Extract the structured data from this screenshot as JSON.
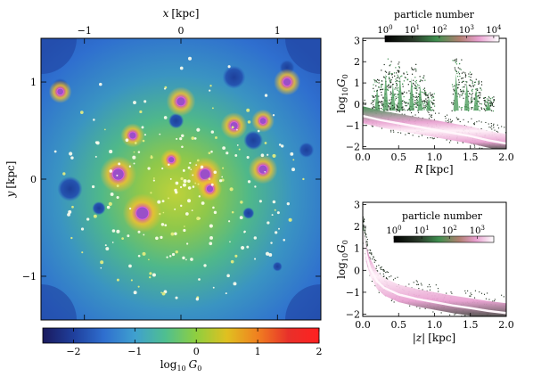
{
  "chart_data": [
    {
      "type": "heatmap",
      "title": "",
      "xlabel_var": "x",
      "xlabel_unit": "[kpc]",
      "ylabel_var": "y",
      "ylabel_unit": "[kpc]",
      "x_ticks": [
        "−1",
        "0",
        "1"
      ],
      "y_ticks": [
        "1",
        "0",
        "−1"
      ],
      "x_tick_values": [
        -1,
        0,
        1
      ],
      "y_tick_values": [
        1,
        0,
        -1
      ],
      "xlim": [
        -1.45,
        1.45
      ],
      "ylim": [
        -1.45,
        1.45
      ],
      "colorbar": {
        "label_prefix": "log",
        "label_sub": "10",
        "label_var": "G",
        "label_var_sub": "0",
        "range": [
          -2.5,
          2
        ],
        "ticks": [
          "−2",
          "−1",
          "0",
          "1",
          "2"
        ],
        "tick_values": [
          -2,
          -1,
          0,
          1,
          2
        ],
        "colormap": [
          "#1a1a5e",
          "#1f3f9c",
          "#2f6fcf",
          "#3fa0cf",
          "#4fbf8f",
          "#8fcf3f",
          "#e0c020",
          "#f08020",
          "#e8302a",
          "#ff2020"
        ]
      },
      "dim_regions": [
        {
          "x": -1.25,
          "y": 0.95,
          "r": 0.09
        },
        {
          "x": -1.15,
          "y": -0.1,
          "r": 0.13
        },
        {
          "x": 0.55,
          "y": 1.05,
          "r": 0.12
        },
        {
          "x": 1.1,
          "y": 1.15,
          "r": 0.08
        },
        {
          "x": -0.05,
          "y": 0.6,
          "r": 0.08
        },
        {
          "x": 0.75,
          "y": 0.4,
          "r": 0.1
        },
        {
          "x": 1.3,
          "y": 0.3,
          "r": 0.08
        },
        {
          "x": 0.7,
          "y": -0.35,
          "r": 0.06
        },
        {
          "x": -0.85,
          "y": -0.3,
          "r": 0.07
        },
        {
          "x": 1.0,
          "y": -0.9,
          "r": 0.05
        }
      ],
      "bright_sources": [
        {
          "x": -0.4,
          "y": -0.35,
          "size": 1.0
        },
        {
          "x": -0.65,
          "y": 0.05,
          "size": 0.9
        },
        {
          "x": 0.25,
          "y": 0.05,
          "size": 0.8
        },
        {
          "x": 0.0,
          "y": 0.8,
          "size": 0.6
        },
        {
          "x": 0.85,
          "y": 0.1,
          "size": 0.6
        },
        {
          "x": 0.55,
          "y": 0.55,
          "size": 0.5
        },
        {
          "x": 1.1,
          "y": 1.0,
          "size": 0.5
        },
        {
          "x": -0.5,
          "y": 0.45,
          "size": 0.4
        },
        {
          "x": 0.3,
          "y": -0.1,
          "size": 0.4
        },
        {
          "x": -1.25,
          "y": 0.9,
          "size": 0.35
        },
        {
          "x": 0.85,
          "y": 0.6,
          "size": 0.35
        },
        {
          "x": -0.1,
          "y": 0.2,
          "size": 0.3
        }
      ]
    },
    {
      "type": "heatmap",
      "title_colorbar": "particle number",
      "xlabel_var": "R",
      "xlabel_unit": "[kpc]",
      "ylabel_prefix": "log",
      "ylabel_sub": "10",
      "ylabel_var": "G",
      "ylabel_var_sub": "0",
      "xlim": [
        0,
        2
      ],
      "ylim": [
        -2.1,
        3.1
      ],
      "x_ticks": [
        "0.0",
        "0.5",
        "1.0",
        "1.5",
        "2.0"
      ],
      "x_tick_values": [
        0,
        0.5,
        1,
        1.5,
        2
      ],
      "y_ticks": [
        "−2",
        "−1",
        "0",
        "1",
        "2",
        "3"
      ],
      "y_tick_values": [
        -2,
        -1,
        0,
        1,
        2,
        3
      ],
      "colorbar_tick_exponents": [
        "0",
        "1",
        "2",
        "3",
        "4"
      ],
      "colorbar_range_log": [
        0,
        4.2
      ],
      "ridge": {
        "x": [
          0,
          0.25,
          0.5,
          0.75,
          1.0,
          1.25,
          1.5,
          1.75,
          2.0
        ],
        "y": [
          -0.55,
          -0.75,
          -0.9,
          -1.05,
          -1.2,
          -1.35,
          -1.5,
          -1.7,
          -1.85
        ]
      },
      "spikes": [
        {
          "x": 0.2,
          "top": 1.2
        },
        {
          "x": 0.32,
          "top": 2.2
        },
        {
          "x": 0.42,
          "top": 1.5
        },
        {
          "x": 0.52,
          "top": 2.0
        },
        {
          "x": 0.68,
          "top": 1.9
        },
        {
          "x": 0.8,
          "top": 1.4
        },
        {
          "x": 0.92,
          "top": 0.6
        },
        {
          "x": 1.3,
          "top": 2.2
        },
        {
          "x": 1.45,
          "top": 1.6
        },
        {
          "x": 1.58,
          "top": 1.2
        },
        {
          "x": 1.75,
          "top": 0.4
        }
      ]
    },
    {
      "type": "heatmap",
      "title_colorbar": "particle number",
      "xlabel_var": "|z|",
      "xlabel_unit": "[kpc]",
      "ylabel_prefix": "log",
      "ylabel_sub": "10",
      "ylabel_var": "G",
      "ylabel_var_sub": "0",
      "xlim": [
        0,
        2
      ],
      "ylim": [
        -2.1,
        3.1
      ],
      "x_ticks": [
        "0.0",
        "0.5",
        "1.0",
        "1.5",
        "2.0"
      ],
      "x_tick_values": [
        0,
        0.5,
        1,
        1.5,
        2
      ],
      "y_ticks": [
        "−2",
        "−1",
        "0",
        "1",
        "2",
        "3"
      ],
      "y_tick_values": [
        -2,
        -1,
        0,
        1,
        2,
        3
      ],
      "colorbar_tick_exponents": [
        "0",
        "1",
        "2",
        "3"
      ],
      "colorbar_range_log": [
        0,
        3.6
      ],
      "ridge": {
        "x": [
          0,
          0.05,
          0.1,
          0.2,
          0.3,
          0.5,
          0.75,
          1.0,
          1.25,
          1.5,
          1.75,
          2.0
        ],
        "y": [
          1.8,
          0.7,
          0.1,
          -0.5,
          -0.8,
          -1.1,
          -1.3,
          -1.45,
          -1.6,
          -1.72,
          -1.85,
          -1.95
        ]
      }
    }
  ]
}
